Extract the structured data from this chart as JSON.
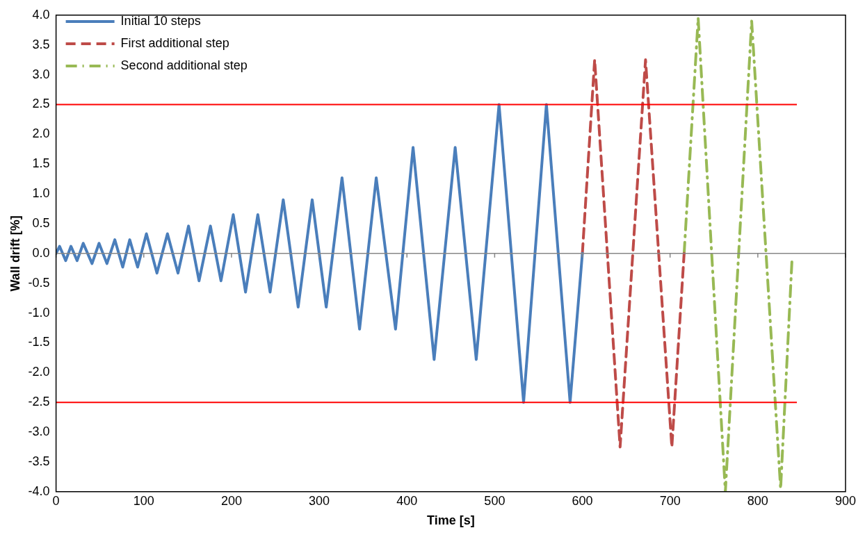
{
  "chart_data": {
    "type": "line",
    "xlabel": "Time [s]",
    "ylabel": "Wall drift [%]",
    "xlim": [
      0,
      900
    ],
    "xticks": [
      0,
      100,
      200,
      300,
      400,
      500,
      600,
      700,
      800,
      900
    ],
    "ylim": [
      -4,
      4
    ],
    "yticks": [
      {
        "value": -4,
        "label": "-4.0"
      },
      {
        "value": -3.5,
        "label": "-3.5"
      },
      {
        "value": -3,
        "label": "-3.0"
      },
      {
        "value": -2.5,
        "label": "-2.5"
      },
      {
        "value": -2,
        "label": "-2.0"
      },
      {
        "value": -1.5,
        "label": "-1.5"
      },
      {
        "value": -1,
        "label": "-1.0"
      },
      {
        "value": -0.5,
        "label": "-0.5"
      },
      {
        "value": 0,
        "label": "0.0"
      },
      {
        "value": 0.5,
        "label": "0.5"
      },
      {
        "value": 1,
        "label": "1.0"
      },
      {
        "value": 1.5,
        "label": "1.5"
      },
      {
        "value": 2,
        "label": "2.0"
      },
      {
        "value": 2.5,
        "label": "2.5"
      },
      {
        "value": 3,
        "label": "3.0"
      },
      {
        "value": 3.5,
        "label": "3.5"
      },
      {
        "value": 4,
        "label": "4.0"
      }
    ],
    "grid": false,
    "legend": "top left",
    "marker": "none",
    "series": [
      {
        "name": "Initial 10 steps",
        "color": "#4a7ebb",
        "line_style": "solid",
        "x": [
          0,
          4,
          11,
          17,
          24,
          31,
          41,
          49,
          58,
          67,
          76,
          84,
          93,
          103,
          115,
          127,
          139,
          151,
          163,
          176,
          188,
          202,
          216,
          230,
          244,
          259,
          276,
          292,
          308,
          326,
          346,
          365,
          387,
          407,
          431,
          455,
          479,
          505,
          533,
          559,
          586,
          600
        ],
        "values": [
          0,
          0.12,
          -0.12,
          0.12,
          -0.12,
          0.17,
          -0.17,
          0.17,
          -0.17,
          0.23,
          -0.23,
          0.23,
          -0.23,
          0.33,
          -0.33,
          0.33,
          -0.33,
          0.46,
          -0.46,
          0.46,
          -0.46,
          0.65,
          -0.65,
          0.65,
          -0.65,
          0.9,
          -0.9,
          0.9,
          -0.9,
          1.27,
          -1.27,
          1.27,
          -1.27,
          1.78,
          -1.78,
          1.78,
          -1.78,
          2.5,
          -2.5,
          2.5,
          -2.5,
          0
        ]
      },
      {
        "name": "First additional step",
        "color": "#be4b48",
        "line_style": "dashed",
        "x": [
          600,
          614,
          643,
          672,
          702,
          716
        ],
        "values": [
          0,
          3.25,
          -3.25,
          3.25,
          -3.25,
          0
        ]
      },
      {
        "name": "Second additional step",
        "color": "#98b954",
        "line_style": "dashdot",
        "x": [
          716,
          732,
          763,
          793,
          826,
          839
        ],
        "values": [
          0,
          3.95,
          -4,
          3.9,
          -3.95,
          -0.1
        ]
      }
    ],
    "ref_lines": [
      {
        "axis": "y",
        "value": 2.5,
        "color": "#ff0000"
      },
      {
        "axis": "y",
        "value": -2.5,
        "color": "#ff0000"
      }
    ]
  }
}
